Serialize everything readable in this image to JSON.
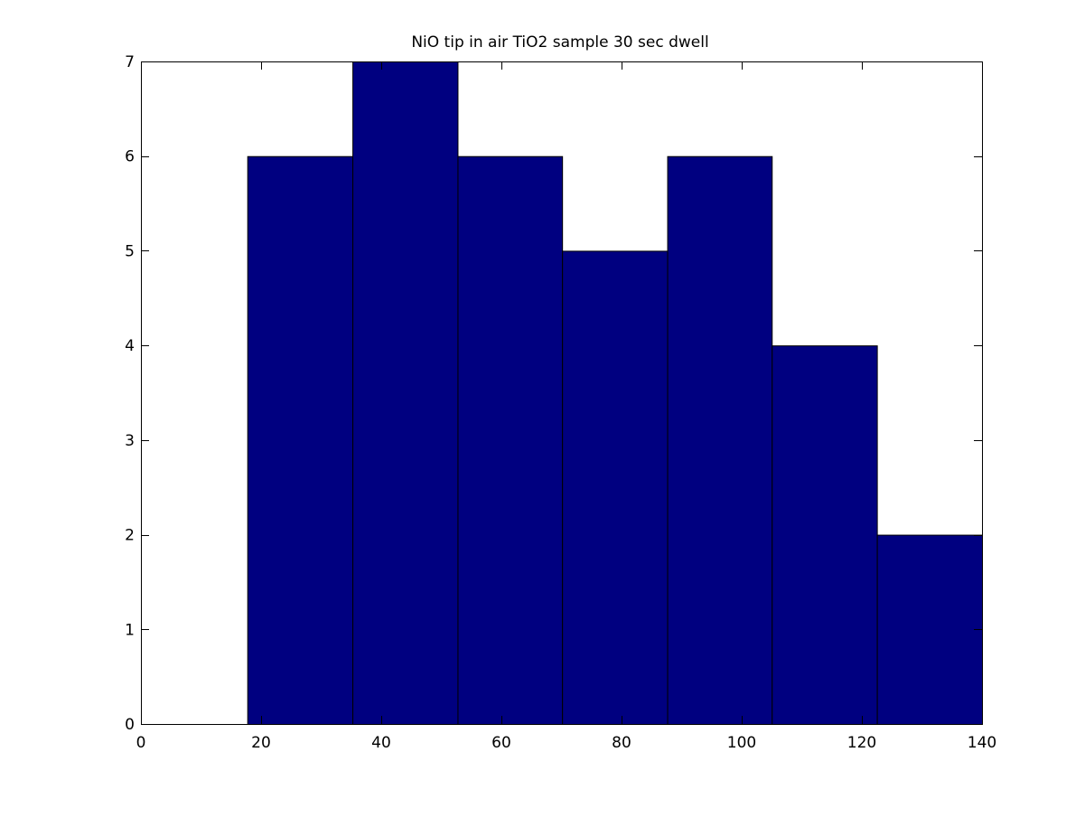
{
  "chart_data": {
    "type": "bar",
    "title": "NiO tip in air TiO2 sample 30 sec dwell",
    "xlabel": "",
    "ylabel": "",
    "xlim": [
      0,
      140
    ],
    "ylim": [
      0,
      7
    ],
    "grid": false,
    "x_ticks": [
      0,
      20,
      40,
      60,
      80,
      100,
      120,
      140
    ],
    "y_ticks": [
      0,
      1,
      2,
      3,
      4,
      5,
      6,
      7
    ],
    "bins": [
      {
        "x0": 17.7,
        "x1": 35.2,
        "value": 6
      },
      {
        "x0": 35.2,
        "x1": 52.7,
        "value": 7
      },
      {
        "x0": 52.7,
        "x1": 70.1,
        "value": 6
      },
      {
        "x0": 70.1,
        "x1": 87.6,
        "value": 5
      },
      {
        "x0": 87.6,
        "x1": 105.0,
        "value": 6
      },
      {
        "x0": 105.0,
        "x1": 122.5,
        "value": 4
      },
      {
        "x0": 122.5,
        "x1": 140.0,
        "value": 2
      }
    ],
    "bar_color": "#000080",
    "edge_color": "#000000"
  }
}
